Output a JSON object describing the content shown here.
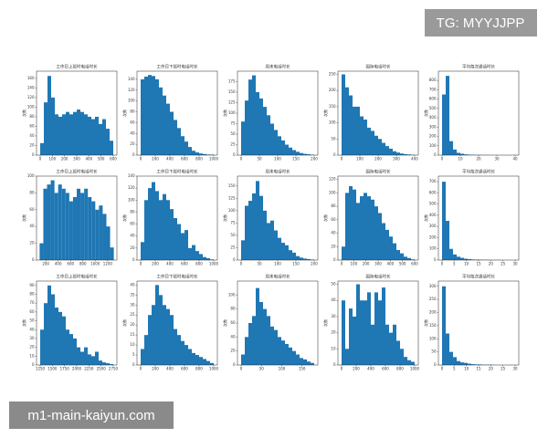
{
  "watermarks": {
    "top": "TG: MYYJJPP",
    "bottom": "m1-main-kaiyun.com"
  },
  "chart_data": [
    {
      "type": "histogram",
      "title": "工作日上班时电话时长",
      "y_label": "次数",
      "color": "#1f77b4",
      "bins": [
        0,
        30,
        60,
        90,
        120,
        150,
        180,
        210,
        240,
        270,
        300,
        330,
        360,
        390,
        420,
        450,
        480,
        510,
        540,
        570,
        600
      ],
      "counts": [
        25,
        110,
        165,
        120,
        85,
        80,
        85,
        90,
        85,
        90,
        95,
        90,
        85,
        80,
        75,
        80,
        65,
        75,
        55,
        30
      ],
      "xlim": [
        -30,
        630
      ],
      "xticks": [
        0,
        100,
        200,
        300,
        400,
        500,
        600
      ],
      "ylim": [
        0,
        175
      ],
      "yticks": [
        0,
        20,
        40,
        60,
        80,
        100,
        120,
        140,
        160
      ]
    },
    {
      "type": "histogram",
      "title": "工作日下班时电话时长",
      "y_label": "次数",
      "color": "#1f77b4",
      "bins": [
        0,
        50,
        100,
        150,
        200,
        250,
        300,
        350,
        400,
        450,
        500,
        550,
        600,
        650,
        700,
        750,
        800,
        850,
        900,
        950,
        1000
      ],
      "counts": [
        140,
        145,
        148,
        146,
        140,
        125,
        110,
        95,
        80,
        65,
        50,
        35,
        25,
        15,
        8,
        5,
        3,
        2,
        1,
        1
      ],
      "xlim": [
        -50,
        1050
      ],
      "xticks": [
        0,
        200,
        400,
        600,
        800,
        1000
      ],
      "ylim": [
        0,
        155
      ],
      "yticks": [
        0,
        20,
        40,
        60,
        80,
        100,
        120,
        140
      ]
    },
    {
      "type": "histogram",
      "title": "周末电话时长",
      "y_label": "次数",
      "color": "#1f77b4",
      "bins": [
        0,
        10,
        20,
        30,
        40,
        50,
        60,
        70,
        80,
        90,
        100,
        110,
        120,
        130,
        140,
        150,
        160,
        170,
        180,
        190,
        200
      ],
      "counts": [
        80,
        130,
        180,
        190,
        150,
        135,
        115,
        95,
        75,
        60,
        45,
        35,
        25,
        18,
        12,
        8,
        5,
        3,
        2,
        1
      ],
      "xlim": [
        -10,
        210
      ],
      "xticks": [
        0,
        50,
        100,
        150,
        200
      ],
      "ylim": [
        0,
        200
      ],
      "yticks": [
        0,
        25,
        50,
        75,
        100,
        125,
        150,
        175
      ]
    },
    {
      "type": "histogram",
      "title": "国际电话时长",
      "y_label": "次数",
      "color": "#1f77b4",
      "bins": [
        0,
        20,
        40,
        60,
        80,
        100,
        120,
        140,
        160,
        180,
        200,
        220,
        240,
        260,
        280,
        300,
        320,
        340,
        360,
        380,
        400
      ],
      "counts": [
        250,
        210,
        185,
        150,
        150,
        120,
        110,
        85,
        75,
        60,
        50,
        38,
        28,
        20,
        12,
        8,
        5,
        3,
        2,
        1
      ],
      "xlim": [
        -20,
        420
      ],
      "xticks": [
        0,
        100,
        200,
        300,
        400
      ],
      "ylim": [
        0,
        260
      ],
      "yticks": [
        0,
        50,
        100,
        150,
        200,
        250
      ]
    },
    {
      "type": "histogram",
      "title": "平均每次通话时长",
      "y_label": "次数",
      "color": "#1f77b4",
      "bins": [
        0,
        2,
        4,
        6,
        8,
        10,
        12,
        14,
        16,
        18,
        20,
        22,
        24,
        26,
        28,
        30,
        32,
        34,
        36,
        38,
        40
      ],
      "counts": [
        650,
        850,
        150,
        60,
        25,
        15,
        8,
        5,
        3,
        2,
        2,
        1,
        1,
        0,
        0,
        0,
        0,
        0,
        0,
        0
      ],
      "xlim": [
        -2,
        42
      ],
      "xticks": [
        0,
        10,
        20,
        30,
        40
      ],
      "ylim": [
        0,
        900
      ],
      "yticks": [
        0,
        100,
        200,
        300,
        400,
        500,
        600,
        700,
        800
      ]
    },
    {
      "type": "histogram",
      "title": "工作日上班时电话时长",
      "y_label": "次数",
      "color": "#1f77b4",
      "bins": [
        100,
        160,
        220,
        280,
        340,
        400,
        460,
        520,
        580,
        640,
        700,
        760,
        820,
        880,
        940,
        1000,
        1060,
        1120,
        1180,
        1240,
        1300
      ],
      "counts": [
        20,
        85,
        90,
        95,
        80,
        90,
        85,
        80,
        70,
        75,
        85,
        80,
        85,
        75,
        70,
        60,
        65,
        55,
        40,
        15
      ],
      "xlim": [
        50,
        1350
      ],
      "xticks": [
        200,
        400,
        600,
        800,
        1000,
        1200
      ],
      "ylim": [
        0,
        100
      ],
      "yticks": [
        0,
        20,
        40,
        60,
        80,
        100
      ]
    },
    {
      "type": "histogram",
      "title": "工作日下班时电话时长",
      "y_label": "次数",
      "color": "#1f77b4",
      "bins": [
        0,
        50,
        100,
        150,
        200,
        250,
        300,
        350,
        400,
        450,
        500,
        550,
        600,
        650,
        700,
        750,
        800,
        850,
        900,
        950,
        1000
      ],
      "counts": [
        30,
        100,
        120,
        130,
        115,
        100,
        110,
        100,
        85,
        70,
        60,
        45,
        50,
        20,
        25,
        15,
        10,
        5,
        3,
        1
      ],
      "xlim": [
        -50,
        1050
      ],
      "xticks": [
        0,
        200,
        400,
        600,
        800,
        1000
      ],
      "ylim": [
        0,
        140
      ],
      "yticks": [
        0,
        20,
        40,
        60,
        80,
        100,
        120,
        140
      ]
    },
    {
      "type": "histogram",
      "title": "周末电话时长",
      "y_label": "次数",
      "color": "#1f77b4",
      "bins": [
        0,
        10,
        20,
        30,
        40,
        50,
        60,
        70,
        80,
        90,
        100,
        110,
        120,
        130,
        140,
        150,
        160,
        170,
        180,
        190,
        200
      ],
      "counts": [
        40,
        110,
        120,
        135,
        160,
        130,
        100,
        75,
        80,
        60,
        45,
        35,
        30,
        20,
        15,
        8,
        5,
        3,
        2,
        1
      ],
      "xlim": [
        -10,
        210
      ],
      "xticks": [
        0,
        50,
        100,
        150,
        200
      ],
      "ylim": [
        0,
        170
      ],
      "yticks": [
        0,
        25,
        50,
        75,
        100,
        125,
        150
      ]
    },
    {
      "type": "histogram",
      "title": "国际电话时长",
      "y_label": "次数",
      "color": "#1f77b4",
      "bins": [
        0,
        30,
        60,
        90,
        120,
        150,
        180,
        210,
        240,
        270,
        300,
        330,
        360,
        390,
        420,
        450,
        480,
        510,
        540,
        570,
        600
      ],
      "counts": [
        20,
        100,
        110,
        105,
        85,
        95,
        100,
        95,
        90,
        80,
        70,
        55,
        45,
        35,
        25,
        15,
        10,
        5,
        3,
        1
      ],
      "xlim": [
        -30,
        630
      ],
      "xticks": [
        0,
        100,
        200,
        300,
        400,
        500,
        600
      ],
      "ylim": [
        0,
        125
      ],
      "yticks": [
        0,
        20,
        40,
        60,
        80,
        100,
        120
      ]
    },
    {
      "type": "histogram",
      "title": "平均每次通话时长",
      "y_label": "次数",
      "color": "#1f77b4",
      "bins": [
        0,
        1.5,
        3,
        4.5,
        6,
        7.5,
        9,
        10.5,
        12,
        13.5,
        15,
        16.5,
        18,
        19.5,
        21,
        22.5,
        24,
        25.5,
        27,
        28.5,
        30
      ],
      "counts": [
        700,
        350,
        100,
        50,
        30,
        20,
        12,
        8,
        5,
        4,
        3,
        2,
        2,
        1,
        1,
        1,
        0,
        0,
        0,
        0
      ],
      "xlim": [
        -1.5,
        31.5
      ],
      "xticks": [
        0,
        5,
        10,
        15,
        20,
        25,
        30
      ],
      "ylim": [
        0,
        750
      ],
      "yticks": [
        0,
        100,
        200,
        300,
        400,
        500,
        600,
        700
      ]
    },
    {
      "type": "histogram",
      "title": "工作日上班时电话时长",
      "y_label": "次数",
      "color": "#1f77b4",
      "bins": [
        1250,
        1325,
        1400,
        1475,
        1550,
        1625,
        1700,
        1775,
        1850,
        1925,
        2000,
        2075,
        2150,
        2225,
        2300,
        2375,
        2450,
        2525,
        2600,
        2675,
        2750
      ],
      "counts": [
        40,
        70,
        90,
        80,
        65,
        60,
        55,
        40,
        35,
        30,
        20,
        15,
        20,
        12,
        10,
        15,
        5,
        3,
        2,
        1
      ],
      "xlim": [
        1175,
        2825
      ],
      "xticks": [
        1250,
        1500,
        1750,
        2000,
        2250,
        2500,
        2750
      ],
      "ylim": [
        0,
        95
      ],
      "yticks": [
        0,
        10,
        20,
        30,
        40,
        50,
        60,
        70,
        80,
        90
      ]
    },
    {
      "type": "histogram",
      "title": "工作日下班时电话时长",
      "y_label": "次数",
      "color": "#1f77b4",
      "bins": [
        0,
        50,
        100,
        150,
        200,
        250,
        300,
        350,
        400,
        450,
        500,
        550,
        600,
        650,
        700,
        750,
        800,
        850,
        900,
        950,
        1000
      ],
      "counts": [
        8,
        15,
        25,
        30,
        40,
        35,
        30,
        28,
        25,
        18,
        15,
        12,
        10,
        8,
        6,
        5,
        4,
        3,
        2,
        1
      ],
      "xlim": [
        -50,
        1050
      ],
      "xticks": [
        0,
        200,
        400,
        600,
        800,
        1000
      ],
      "ylim": [
        0,
        42
      ],
      "yticks": [
        0,
        5,
        10,
        15,
        20,
        25,
        30,
        35,
        40
      ]
    },
    {
      "type": "histogram",
      "title": "周末电话时长",
      "y_label": "次数",
      "color": "#1f77b4",
      "bins": [
        0,
        9,
        18,
        27,
        36,
        45,
        54,
        63,
        72,
        81,
        90,
        99,
        108,
        117,
        126,
        135,
        144,
        153,
        162,
        171,
        180
      ],
      "counts": [
        15,
        40,
        60,
        70,
        110,
        90,
        80,
        70,
        55,
        50,
        40,
        35,
        30,
        25,
        20,
        15,
        10,
        8,
        5,
        3
      ],
      "xlim": [
        -9,
        189
      ],
      "xticks": [
        0,
        50,
        100,
        150
      ],
      "ylim": [
        0,
        120
      ],
      "yticks": [
        0,
        20,
        40,
        60,
        80,
        100
      ]
    },
    {
      "type": "histogram",
      "title": "国际电话时长",
      "y_label": "次数",
      "color": "#1f77b4",
      "bins": [
        0,
        50,
        100,
        150,
        200,
        250,
        300,
        350,
        400,
        450,
        500,
        550,
        600,
        650,
        700,
        750,
        800,
        850,
        900,
        950,
        1000
      ],
      "counts": [
        40,
        10,
        35,
        30,
        50,
        40,
        40,
        45,
        25,
        45,
        40,
        48,
        25,
        20,
        25,
        15,
        10,
        5,
        3,
        2
      ],
      "xlim": [
        -50,
        1050
      ],
      "xticks": [
        0,
        200,
        400,
        600,
        800,
        1000
      ],
      "ylim": [
        0,
        52
      ],
      "yticks": [
        0,
        10,
        20,
        30,
        40,
        50
      ]
    },
    {
      "type": "histogram",
      "title": "平均每次通话时长",
      "y_label": "次数",
      "color": "#1f77b4",
      "bins": [
        0,
        1.5,
        3,
        4.5,
        6,
        7.5,
        9,
        10.5,
        12,
        13.5,
        15,
        16.5,
        18,
        19.5,
        21,
        22.5,
        24,
        25.5,
        27,
        28.5,
        30
      ],
      "counts": [
        300,
        120,
        50,
        30,
        15,
        10,
        8,
        5,
        3,
        2,
        2,
        1,
        1,
        1,
        0,
        0,
        0,
        0,
        0,
        0
      ],
      "xlim": [
        -1.5,
        31.5
      ],
      "xticks": [
        0,
        5,
        10,
        15,
        20,
        25,
        30
      ],
      "ylim": [
        0,
        320
      ],
      "yticks": [
        0,
        50,
        100,
        150,
        200,
        250,
        300
      ]
    }
  ]
}
